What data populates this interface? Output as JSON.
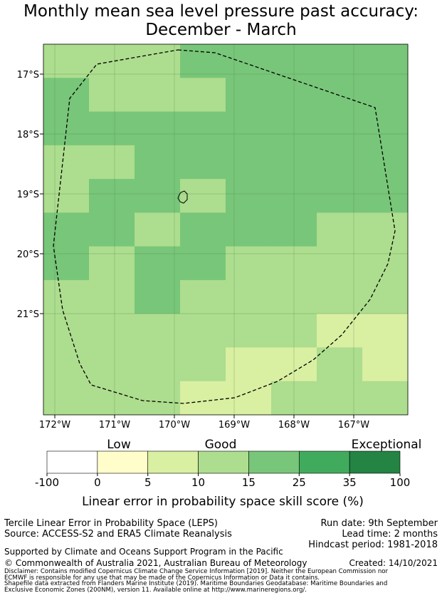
{
  "title": {
    "line1": "Monthly mean sea level pressure past accuracy:",
    "line2": "December - March"
  },
  "map": {
    "lat_ticks": [
      "17°S",
      "18°S",
      "19°S",
      "20°S",
      "21°S"
    ],
    "lon_ticks": [
      "172°W",
      "171°W",
      "170°W",
      "169°W",
      "168°W",
      "167°W"
    ],
    "levels": [
      "#ffffff",
      "#fffecb",
      "#d9efa1",
      "#addd8e",
      "#78c679",
      "#41ab5d",
      "#238443"
    ],
    "grid_levels": [
      [
        3,
        3,
        3,
        4,
        4,
        4,
        4,
        4
      ],
      [
        4,
        3,
        3,
        3,
        4,
        4,
        4,
        4
      ],
      [
        4,
        4,
        4,
        4,
        4,
        4,
        4,
        4
      ],
      [
        3,
        3,
        4,
        4,
        4,
        4,
        4,
        4
      ],
      [
        3,
        4,
        4,
        3,
        4,
        4,
        4,
        4
      ],
      [
        4,
        4,
        3,
        4,
        4,
        4,
        3,
        3
      ],
      [
        4,
        3,
        4,
        4,
        3,
        3,
        3,
        3
      ],
      [
        3,
        3,
        4,
        3,
        3,
        3,
        3,
        3
      ],
      [
        3,
        3,
        3,
        3,
        3,
        3,
        2,
        2
      ],
      [
        3,
        3,
        3,
        3,
        2,
        2,
        3,
        2
      ],
      [
        3,
        3,
        3,
        2,
        2,
        3,
        3,
        3
      ]
    ]
  },
  "colorbar": {
    "categories": [
      "Low",
      "Good",
      "Exceptional"
    ],
    "ticks": [
      "-100",
      "0",
      "5",
      "10",
      "15",
      "25",
      "35",
      "100"
    ],
    "colors": [
      "#ffffff",
      "#fffecb",
      "#d9efa1",
      "#addd8e",
      "#78c679",
      "#41ab5d",
      "#238443"
    ],
    "label": "Linear error in probability space skill score (%)"
  },
  "footer": {
    "method": "Tercile Linear Error in Probability Space (LEPS)",
    "source": "Source: ACCESS-S2 and ERA5 Climate Reanalysis",
    "run_date": "Run date: 9th September",
    "lead_time": "Lead time: 2 months",
    "hindcast": "Hindcast period: 1981-2018",
    "support": "Supported by Climate and Oceans Support Program in the Pacific",
    "copyright": "© Commonwealth of Australia 2021, Australian Bureau of Meteorology",
    "created": "Created: 14/10/2021",
    "disclaimer1": "Disclaimer: Contains modified Copernicus Climate Change Service Information [2019]. Neither the European Commission nor",
    "disclaimer2": "ECMWF is responsible for any use that may be made of the Copernicus Information or Data it contains.",
    "shapefile1": "Shapefile data extracted from Flanders Marine Institute (2019). Maritime Boundaries Geodatabase: Maritime Boundaries and",
    "shapefile2": "Exclusive Economic Zones (200NM), version 11. Available online at http://www.marineregions.org/."
  }
}
